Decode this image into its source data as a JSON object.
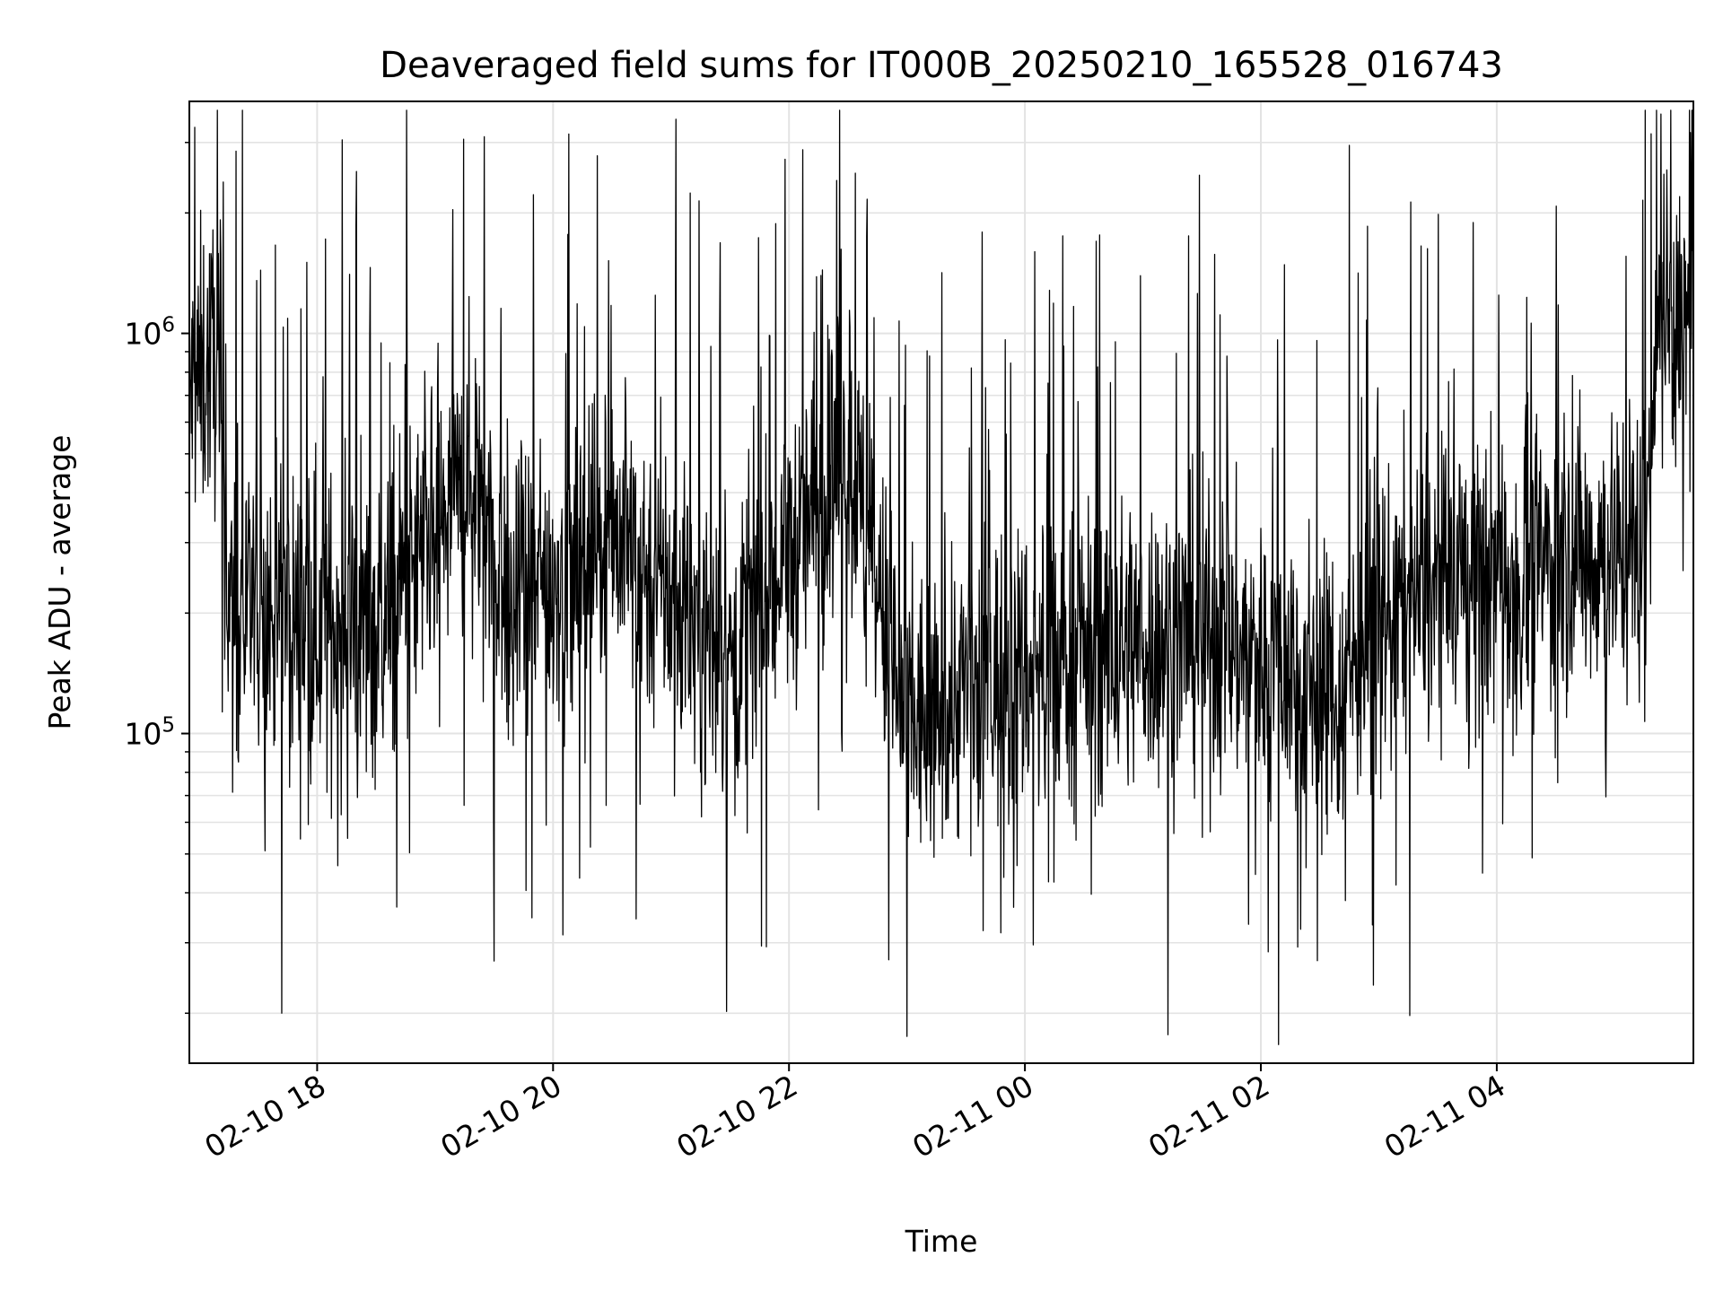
{
  "chart_data": {
    "type": "line",
    "title": "Deaveraged field sums for IT000B_20250210_165528_016743",
    "xlabel": "Time",
    "ylabel": "Peak ADU - average",
    "x_range": [
      "2025-02-10 16:55",
      "2025-02-11 05:40"
    ],
    "ylim": [
      15000,
      3800000
    ],
    "yscale": "log",
    "grid": true,
    "x_ticks": [
      {
        "value": "2025-02-10 18:00",
        "label": "02-10 18"
      },
      {
        "value": "2025-02-10 20:00",
        "label": "02-10 20"
      },
      {
        "value": "2025-02-10 22:00",
        "label": "02-10 22"
      },
      {
        "value": "2025-02-11 00:00",
        "label": "02-11 00"
      },
      {
        "value": "2025-02-11 02:00",
        "label": "02-11 02"
      },
      {
        "value": "2025-02-11 04:00",
        "label": "02-11 04"
      }
    ],
    "y_ticks": [
      {
        "value": 100000,
        "base": "10",
        "exp": "5"
      },
      {
        "value": 1000000,
        "base": "10",
        "exp": "6"
      }
    ],
    "series": [
      {
        "color": "#000000",
        "sample_interval_minutes": 0.25,
        "trend": [
          {
            "x": "2025-02-10 16:55",
            "level": 700000
          },
          {
            "x": "2025-02-10 17:10",
            "level": 900000
          },
          {
            "x": "2025-02-10 17:15",
            "level": 200000
          },
          {
            "x": "2025-02-10 18:30",
            "level": 180000
          },
          {
            "x": "2025-02-10 19:20",
            "level": 450000
          },
          {
            "x": "2025-02-10 19:40",
            "level": 200000
          },
          {
            "x": "2025-02-10 20:30",
            "level": 320000
          },
          {
            "x": "2025-02-10 21:30",
            "level": 150000
          },
          {
            "x": "2025-02-10 22:30",
            "level": 500000
          },
          {
            "x": "2025-02-10 23:00",
            "level": 100000
          },
          {
            "x": "2025-02-10 23:30",
            "level": 130000
          },
          {
            "x": "2025-02-11 00:30",
            "level": 160000
          },
          {
            "x": "2025-02-11 01:30",
            "level": 180000
          },
          {
            "x": "2025-02-11 02:40",
            "level": 130000
          },
          {
            "x": "2025-02-11 03:00",
            "level": 200000
          },
          {
            "x": "2025-02-11 04:00",
            "level": 250000
          },
          {
            "x": "2025-02-11 05:15",
            "level": 300000
          },
          {
            "x": "2025-02-11 05:22",
            "level": 1100000
          },
          {
            "x": "2025-02-11 05:40",
            "level": 950000
          }
        ],
        "notable_points": [
          {
            "x": "2025-02-10 17:42",
            "y": 20000
          },
          {
            "x": "2025-02-10 19:25",
            "y": 3100000
          },
          {
            "x": "2025-02-10 19:30",
            "y": 27000
          },
          {
            "x": "2025-02-10 20:08",
            "y": 3150000
          },
          {
            "x": "2025-02-10 23:00",
            "y": 17500
          },
          {
            "x": "2025-02-11 02:45",
            "y": 2950000
          },
          {
            "x": "2025-02-11 05:25",
            "y": 2500000
          }
        ]
      }
    ]
  }
}
